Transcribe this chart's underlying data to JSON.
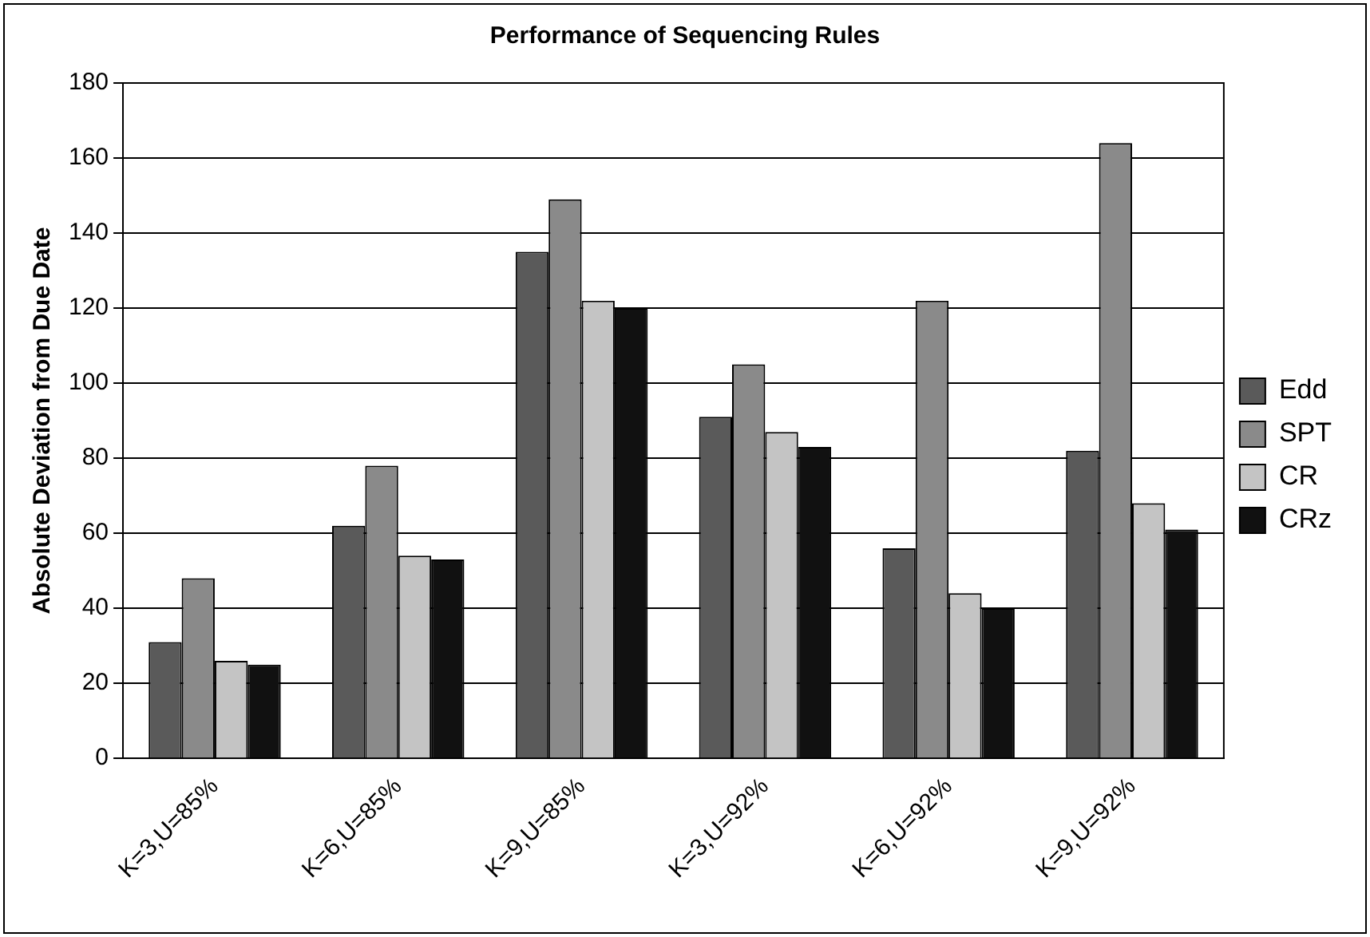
{
  "chart_data": {
    "type": "bar",
    "title": "Performance of Sequencing Rules",
    "ylabel": "Absolute Deviation from Due Date",
    "categories": [
      "K=3,U=85%",
      "K=6,U=85%",
      "K=9,U=85%",
      "K=3,U=92%",
      "K=6,U=92%",
      "K=9,U=92%"
    ],
    "series": [
      {
        "name": "Edd",
        "color": "#5a5a5a",
        "values": [
          31,
          62,
          135,
          91,
          56,
          82
        ]
      },
      {
        "name": "SPT",
        "color": "#8a8a8a",
        "values": [
          48,
          78,
          149,
          105,
          122,
          164
        ]
      },
      {
        "name": "CR",
        "color": "#c4c4c4",
        "values": [
          26,
          54,
          122,
          87,
          44,
          68
        ]
      },
      {
        "name": "CRz",
        "color": "#111111",
        "values": [
          25,
          53,
          120,
          83,
          40,
          61
        ]
      }
    ],
    "ylim": [
      0,
      180
    ],
    "yticks": [
      0,
      20,
      40,
      60,
      80,
      100,
      120,
      140,
      160,
      180
    ],
    "grid": "y",
    "legend": "right"
  }
}
